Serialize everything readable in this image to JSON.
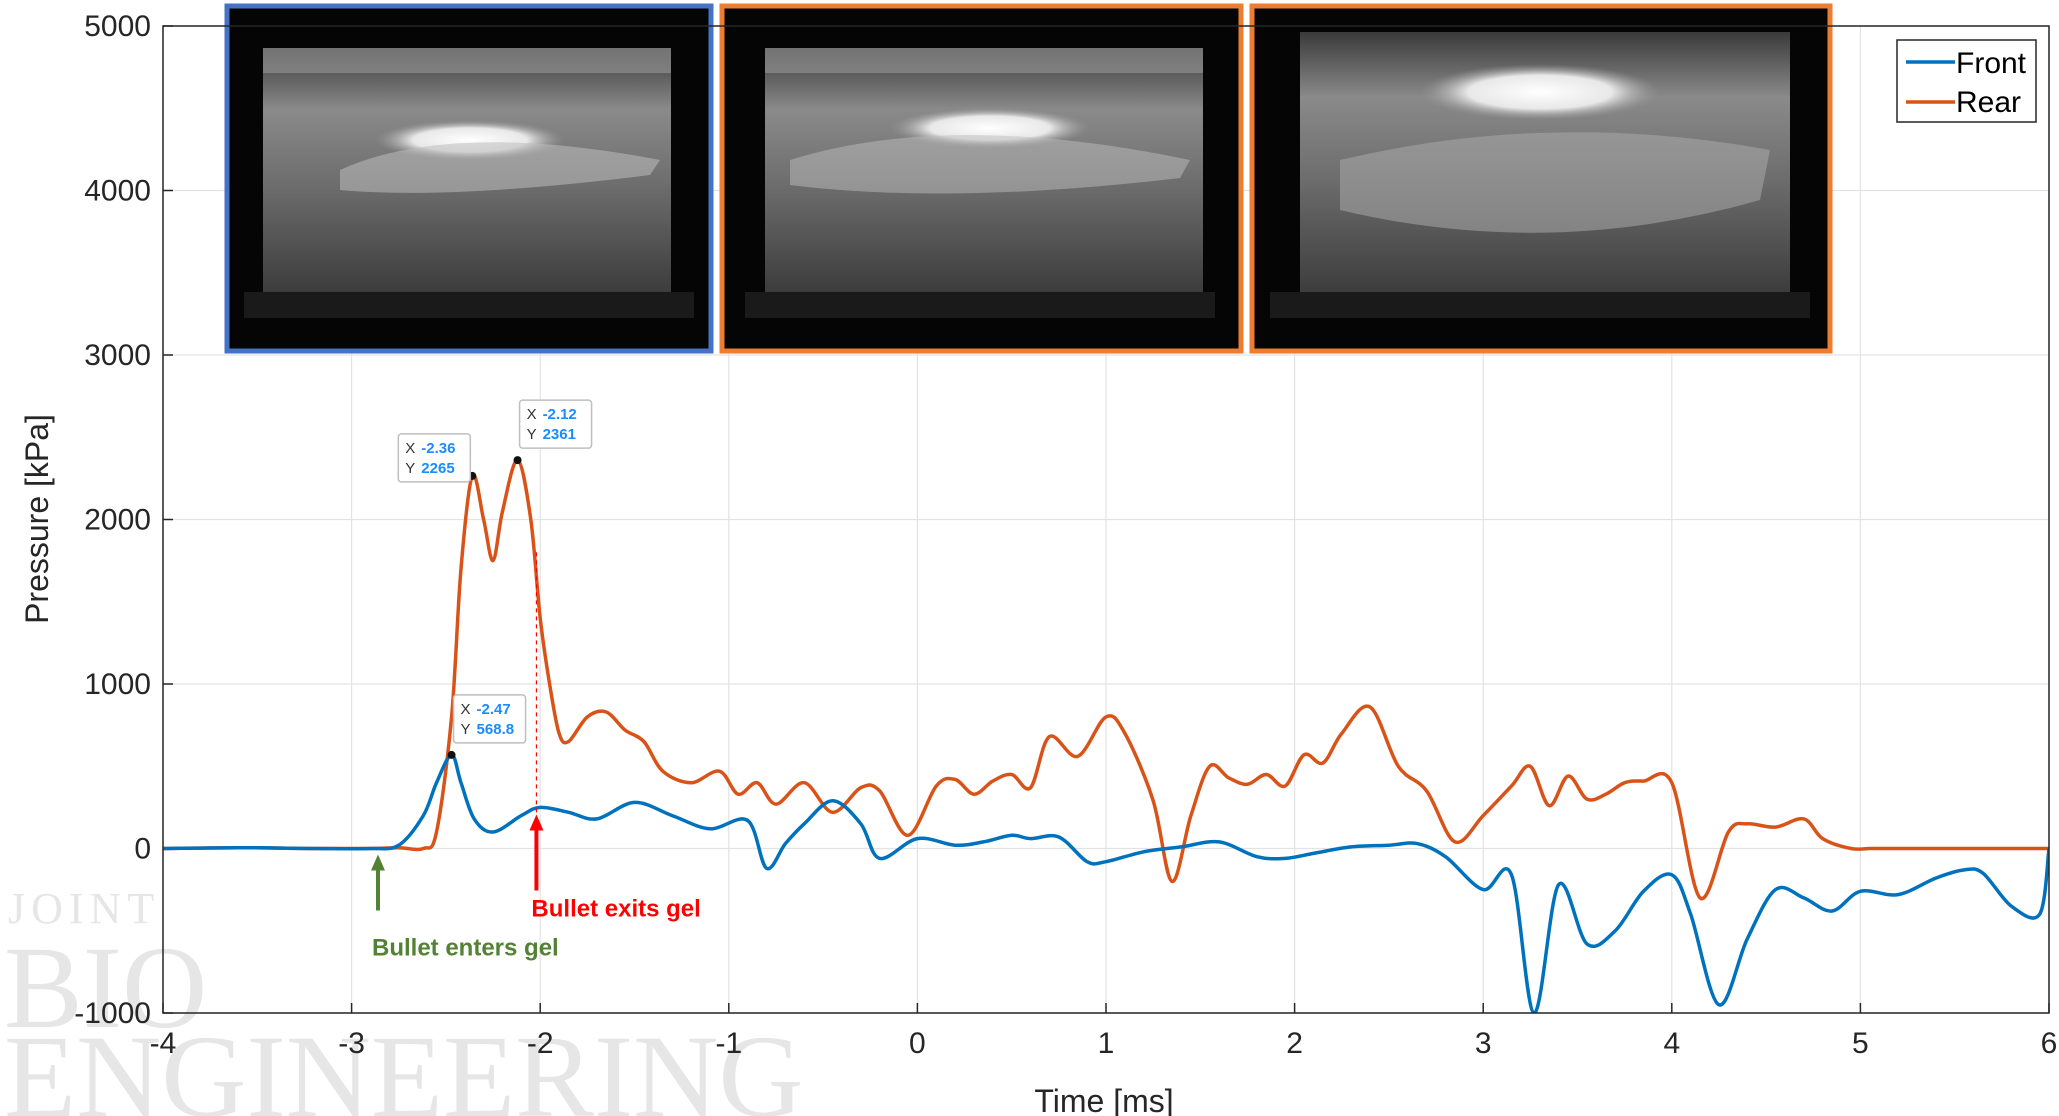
{
  "chart_data": {
    "type": "line",
    "xlabel": "Time [ms]",
    "ylabel": "Pressure [kPa]",
    "xlim": [
      -4,
      6
    ],
    "ylim": [
      -1000,
      5000
    ],
    "xticks": [
      -4,
      -3,
      -2,
      -1,
      0,
      1,
      2,
      3,
      4,
      5,
      6
    ],
    "yticks": [
      -1000,
      0,
      1000,
      2000,
      3000,
      4000,
      5000
    ],
    "xtick_labels": [
      "-4",
      "-3",
      "-2",
      "-1",
      "0",
      "1",
      "2",
      "3",
      "4",
      "5",
      "6"
    ],
    "ytick_labels": [
      "-1000",
      "0",
      "1000",
      "2000",
      "3000",
      "4000",
      "5000"
    ],
    "grid": true,
    "legend": "top-right",
    "series": [
      {
        "name": "Front",
        "color": "#0072BD",
        "x": [
          -4.0,
          -3.6,
          -3.2,
          -2.9,
          -2.75,
          -2.62,
          -2.55,
          -2.47,
          -2.42,
          -2.35,
          -2.25,
          -2.1,
          -2.0,
          -1.85,
          -1.7,
          -1.5,
          -1.3,
          -1.1,
          -0.9,
          -0.8,
          -0.7,
          -0.6,
          -0.45,
          -0.3,
          -0.2,
          0.0,
          0.2,
          0.35,
          0.5,
          0.6,
          0.75,
          0.9,
          1.0,
          1.2,
          1.4,
          1.6,
          1.8,
          1.95,
          2.1,
          2.3,
          2.5,
          2.65,
          2.8,
          3.0,
          3.15,
          3.27,
          3.4,
          3.55,
          3.7,
          3.85,
          4.0,
          4.1,
          4.25,
          4.4,
          4.55,
          4.7,
          4.85,
          5.0,
          5.2,
          5.4,
          5.55,
          5.65,
          5.8,
          5.95,
          6.0
        ],
        "y": [
          0,
          5,
          0,
          0,
          20,
          200,
          400,
          569,
          400,
          180,
          100,
          200,
          250,
          220,
          180,
          280,
          200,
          120,
          170,
          -120,
          30,
          150,
          290,
          150,
          -60,
          60,
          20,
          40,
          80,
          60,
          70,
          -80,
          -80,
          -20,
          10,
          40,
          -50,
          -60,
          -30,
          10,
          20,
          30,
          -50,
          -250,
          -160,
          -1000,
          -220,
          -580,
          -500,
          -260,
          -160,
          -400,
          -950,
          -550,
          -250,
          -300,
          -380,
          -260,
          -280,
          -180,
          -130,
          -150,
          -350,
          -400,
          0
        ]
      },
      {
        "name": "Rear",
        "color": "#D95319",
        "x": [
          -4.0,
          -3.6,
          -3.2,
          -2.9,
          -2.75,
          -2.62,
          -2.55,
          -2.47,
          -2.42,
          -2.36,
          -2.3,
          -2.25,
          -2.2,
          -2.12,
          -2.05,
          -2.0,
          -1.95,
          -1.9,
          -1.85,
          -1.75,
          -1.65,
          -1.55,
          -1.45,
          -1.35,
          -1.2,
          -1.05,
          -0.95,
          -0.85,
          -0.75,
          -0.6,
          -0.45,
          -0.3,
          -0.2,
          -0.05,
          0.1,
          0.2,
          0.3,
          0.4,
          0.5,
          0.6,
          0.7,
          0.85,
          1.0,
          1.1,
          1.25,
          1.35,
          1.45,
          1.55,
          1.65,
          1.75,
          1.85,
          1.95,
          2.05,
          2.15,
          2.25,
          2.4,
          2.55,
          2.7,
          2.85,
          3.0,
          3.15,
          3.25,
          3.35,
          3.45,
          3.55,
          3.65,
          3.75,
          3.85,
          4.0,
          4.15,
          4.3,
          4.4,
          4.55,
          4.7,
          4.8,
          4.95,
          5.05,
          5.15,
          5.25,
          5.35,
          5.45,
          5.55,
          5.65,
          5.75,
          5.85,
          5.95,
          6.0
        ],
        "y": [
          0,
          5,
          0,
          0,
          5,
          0,
          100,
          800,
          1700,
          2265,
          2000,
          1750,
          2050,
          2361,
          2000,
          1400,
          1000,
          700,
          650,
          800,
          830,
          720,
          650,
          470,
          400,
          470,
          330,
          400,
          270,
          400,
          220,
          370,
          350,
          80,
          380,
          420,
          330,
          410,
          450,
          370,
          680,
          560,
          800,
          700,
          290,
          -200,
          200,
          500,
          430,
          390,
          450,
          380,
          570,
          520,
          700,
          860,
          500,
          350,
          40,
          200,
          380,
          500,
          260,
          440,
          300,
          330,
          400,
          410,
          400,
          -300,
          100,
          150,
          130,
          180,
          60,
          0,
          0,
          0,
          0,
          0,
          0,
          0,
          0,
          0,
          0,
          0,
          0
        ]
      }
    ],
    "datatips": [
      {
        "x_label": "X",
        "x_value": "-2.36",
        "y_label": "Y",
        "y_value": "2265",
        "x": -2.36,
        "y": 2265
      },
      {
        "x_label": "X",
        "x_value": "-2.12",
        "y_label": "Y",
        "y_value": "2361",
        "x": -2.12,
        "y": 2361
      },
      {
        "x_label": "X",
        "x_value": "-2.47",
        "y_label": "Y",
        "y_value": "568.8",
        "x": -2.47,
        "y": 568.8
      }
    ],
    "annotations": [
      {
        "text": "Bullet enters gel",
        "color": "#548235",
        "x": -2.86
      },
      {
        "text": "Bullet exits gel",
        "color": "#ff0000",
        "x": -2.02
      }
    ],
    "inset_frame_colors": [
      "#4472C4",
      "#ED7D31",
      "#ED7D31"
    ],
    "watermark": [
      "JOINT",
      "BIO",
      "ENGINEERING"
    ]
  }
}
